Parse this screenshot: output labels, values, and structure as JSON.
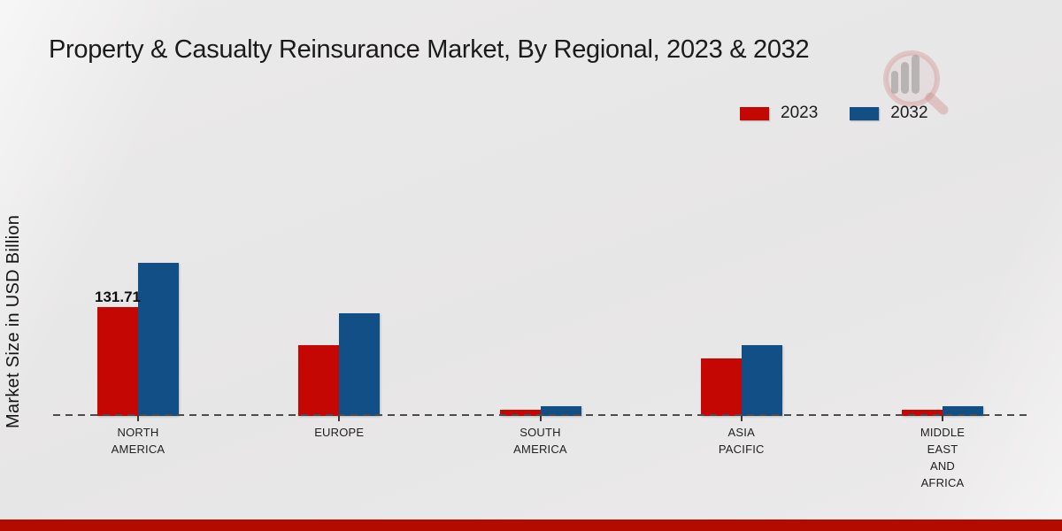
{
  "title": "Property & Casualty Reinsurance Market, By Regional, 2023 & 2032",
  "y_axis_label": "Market Size in USD Billion",
  "colors": {
    "series_2023": "#c50703",
    "series_2032": "#134f87",
    "footer_bar": "#b30b00",
    "baseline": "#4c4c4c",
    "title_text": "#1b1b1b"
  },
  "watermark": {
    "icon": "magnifier-bar-chart-logo"
  },
  "chart_data": {
    "type": "bar",
    "title": "Property & Casualty Reinsurance Market, By Regional, 2023 & 2032",
    "xlabel": "",
    "ylabel": "Market Size in USD Billion",
    "categories": [
      "NORTH AMERICA",
      "EUROPE",
      "SOUTH AMERICA",
      "ASIA PACIFIC",
      "MIDDLE EAST AND AFRICA"
    ],
    "series": [
      {
        "name": "2023",
        "color": "#c50703",
        "values": [
          131.71,
          85.7,
          7.5,
          69.6,
          7.5
        ]
      },
      {
        "name": "2032",
        "color": "#134f87",
        "values": [
          185.2,
          124.2,
          11.8,
          85.7,
          11.8
        ]
      }
    ],
    "data_labels": [
      {
        "series": "2023",
        "category": "NORTH AMERICA",
        "text": "131.71"
      }
    ],
    "ylim": [
      0,
      200
    ],
    "grid": false,
    "axis_line_style": "dashed",
    "legend_position": "top-right"
  }
}
